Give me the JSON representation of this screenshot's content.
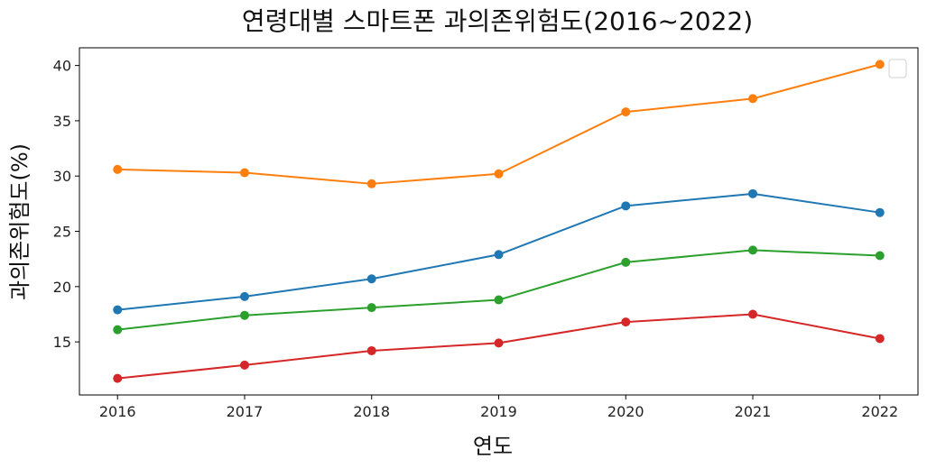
{
  "chart_data": {
    "type": "line",
    "title": "연령대별 스마트폰 과의존위험도(2016~2022)",
    "xlabel": "연도",
    "ylabel": "과의존위험도(%)",
    "x": [
      2016,
      2017,
      2018,
      2019,
      2020,
      2021,
      2022
    ],
    "xticks": [
      "2016",
      "2017",
      "2018",
      "2019",
      "2020",
      "2021",
      "2022"
    ],
    "yticks": [
      "15",
      "20",
      "25",
      "30",
      "35",
      "40"
    ],
    "ylim": [
      10.2,
      41.6
    ],
    "xlim": [
      2015.7,
      2022.3
    ],
    "grid": false,
    "legend": "top-right (empty)",
    "series": [
      {
        "color": "#1f77b4",
        "values": [
          17.9,
          19.1,
          20.7,
          22.9,
          27.3,
          28.4,
          26.7
        ]
      },
      {
        "color": "#ff7f0e",
        "values": [
          30.6,
          30.3,
          29.3,
          30.2,
          35.8,
          37.0,
          40.1
        ]
      },
      {
        "color": "#2ca02c",
        "values": [
          16.1,
          17.4,
          18.1,
          18.8,
          22.2,
          23.3,
          22.8
        ]
      },
      {
        "color": "#d62728",
        "values": [
          11.7,
          12.9,
          14.2,
          14.9,
          16.8,
          17.5,
          15.3
        ]
      }
    ]
  }
}
